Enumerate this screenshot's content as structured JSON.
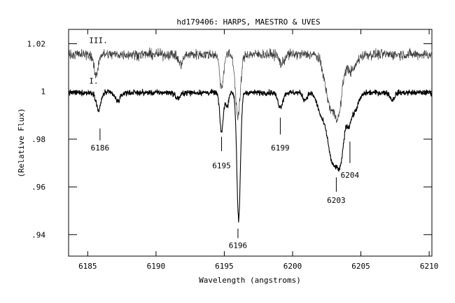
{
  "chart_data": {
    "type": "line",
    "title": "hd179406: HARPS, MAESTRO & UVES",
    "xlabel": "Wavelength (angstroms)",
    "ylabel": "(Relative Flux)",
    "xlim": [
      6183.6,
      6210.2
    ],
    "ylim": [
      0.931,
      1.026
    ],
    "grid": false,
    "x_ticks": [
      6185,
      6190,
      6195,
      6200,
      6205,
      6210
    ],
    "y_ticks": [
      0.94,
      0.96,
      0.98,
      1.0,
      1.02
    ],
    "x_tick_labels": [
      "6185",
      "6190",
      "6195",
      "6200",
      "6205",
      "6210"
    ],
    "y_tick_labels": [
      ".94",
      ".96",
      ".98",
      "1",
      "1.02"
    ],
    "series": [
      {
        "name": "I.",
        "color": "#000000",
        "baseline": 0.9995,
        "noise": 0.0012,
        "lines": [
          {
            "center": 6185.8,
            "depth": 0.0075,
            "width": 0.16
          },
          {
            "center": 6187.2,
            "depth": 0.0035,
            "width": 0.2
          },
          {
            "center": 6191.6,
            "depth": 0.0025,
            "width": 0.18
          },
          {
            "center": 6194.8,
            "depth": 0.0165,
            "width": 0.13
          },
          {
            "center": 6195.2,
            "depth": 0.006,
            "width": 0.1
          },
          {
            "center": 6196.05,
            "depth": 0.0535,
            "width": 0.13
          },
          {
            "center": 6199.1,
            "depth": 0.006,
            "width": 0.18
          },
          {
            "center": 6200.9,
            "depth": 0.003,
            "width": 0.16
          },
          {
            "center": 6202.1,
            "depth": 0.008,
            "width": 0.3
          },
          {
            "center": 6202.95,
            "depth": 0.029,
            "width": 0.38
          },
          {
            "center": 6203.55,
            "depth": 0.021,
            "width": 0.25
          },
          {
            "center": 6204.1,
            "depth": 0.006,
            "width": 0.14
          },
          {
            "center": 6204.4,
            "depth": 0.009,
            "width": 0.35
          },
          {
            "center": 6207.3,
            "depth": 0.003,
            "width": 0.16
          }
        ]
      },
      {
        "name": "III.",
        "color": "#3a3a3a",
        "baseline": 1.0155,
        "noise": 0.0022,
        "lines": [
          {
            "center": 6185.6,
            "depth": 0.009,
            "width": 0.15
          },
          {
            "center": 6191.8,
            "depth": 0.004,
            "width": 0.18
          },
          {
            "center": 6194.8,
            "depth": 0.014,
            "width": 0.14
          },
          {
            "center": 6196.0,
            "depth": 0.026,
            "width": 0.18
          },
          {
            "center": 6199.2,
            "depth": 0.004,
            "width": 0.18
          },
          {
            "center": 6202.8,
            "depth": 0.022,
            "width": 0.4
          },
          {
            "center": 6203.4,
            "depth": 0.018,
            "width": 0.25
          },
          {
            "center": 6204.3,
            "depth": 0.007,
            "width": 0.35
          }
        ]
      }
    ],
    "annotations": [
      {
        "text": "6186",
        "x": 6185.9,
        "y_tick": [
          0.9845,
          0.9795
        ],
        "y_text": 0.9765
      },
      {
        "text": "6195",
        "x": 6194.8,
        "y_tick": [
          0.981,
          0.975
        ],
        "y_text": 0.969
      },
      {
        "text": "6196",
        "x": 6196.0,
        "y_tick": [
          0.9425,
          0.9385
        ],
        "y_text": 0.9355
      },
      {
        "text": "6199",
        "x": 6199.1,
        "y_tick": [
          0.989,
          0.982
        ],
        "y_text": 0.9765
      },
      {
        "text": "6203",
        "x": 6203.2,
        "y_tick": [
          0.964,
          0.958
        ],
        "y_text": 0.9545
      },
      {
        "text": "6204",
        "x": 6204.2,
        "y_tick": [
          0.979,
          0.97
        ],
        "y_text": 0.965
      }
    ],
    "series_labels": [
      {
        "text": "III.",
        "x": 6185.1,
        "y": 1.0215
      },
      {
        "text": "I.",
        "x": 6185.1,
        "y": 1.0045
      }
    ]
  }
}
